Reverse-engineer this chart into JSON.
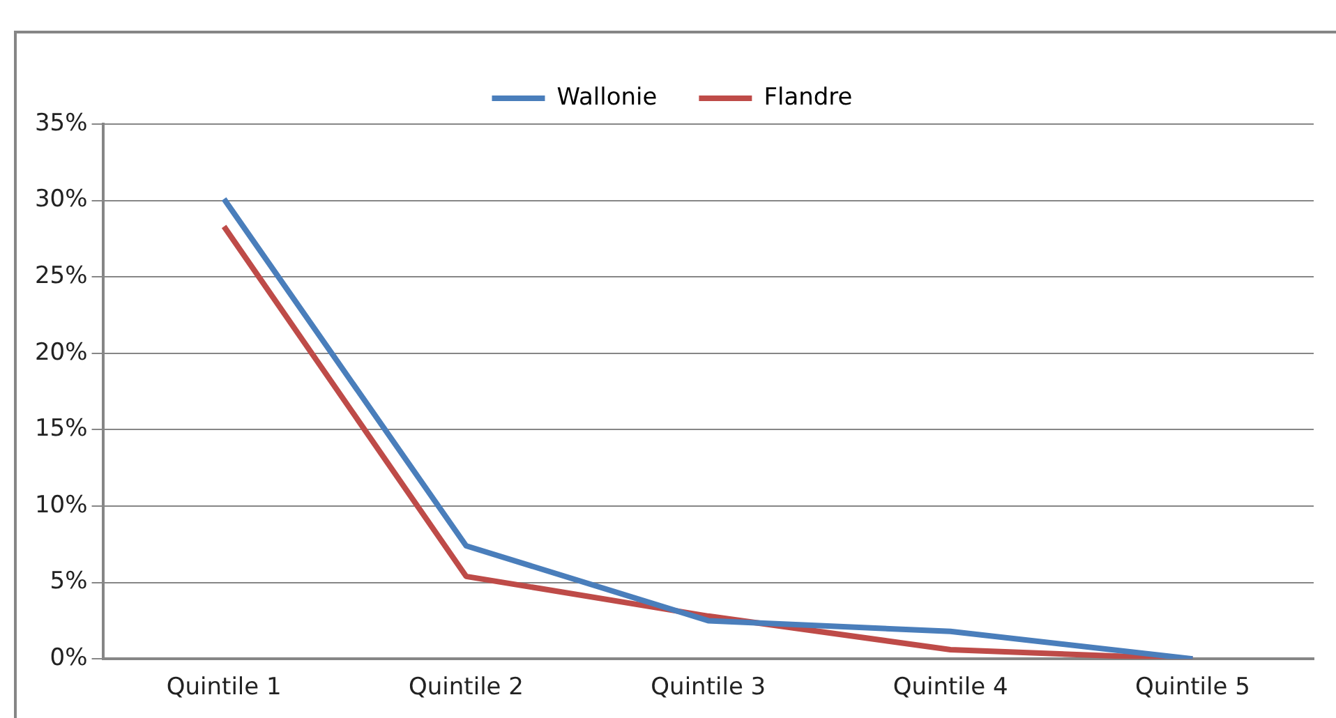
{
  "chart_data": {
    "type": "line",
    "categories": [
      "Quintile 1",
      "Quintile 2",
      "Quintile 3",
      "Quintile 4",
      "Quintile 5"
    ],
    "series": [
      {
        "name": "Wallonie",
        "color": "#4a7ebb",
        "values": [
          30.1,
          7.4,
          2.5,
          1.8,
          0
        ]
      },
      {
        "name": "Flandre",
        "color": "#be4b48",
        "values": [
          28.3,
          5.4,
          2.8,
          0.6,
          0
        ]
      }
    ],
    "ylim": [
      0,
      35
    ],
    "yticks": [
      {
        "value": 0,
        "label": "0%"
      },
      {
        "value": 5,
        "label": "5%"
      },
      {
        "value": 10,
        "label": "10%"
      },
      {
        "value": 15,
        "label": "15%"
      },
      {
        "value": 20,
        "label": "20%"
      },
      {
        "value": 25,
        "label": "25%"
      },
      {
        "value": 30,
        "label": "30%"
      },
      {
        "value": 35,
        "label": "35%"
      }
    ],
    "grid": "y",
    "legend": "top",
    "marker": "none",
    "line_style": "solid"
  }
}
